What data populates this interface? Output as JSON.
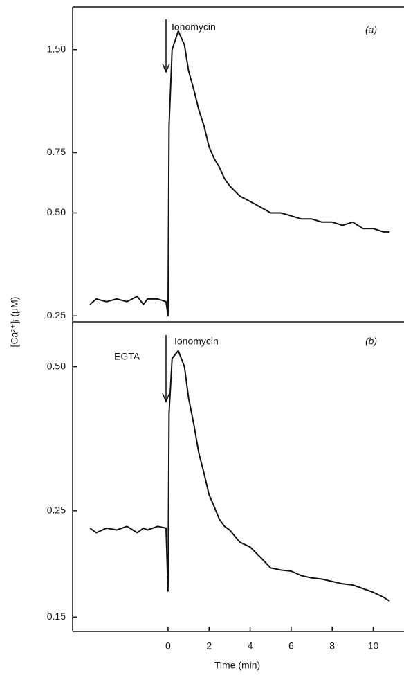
{
  "chart_data": [
    {
      "type": "line",
      "panel_label": "(a)",
      "annotations": [
        "Ionomycin"
      ],
      "ylabel": "[Ca²⁺]ᵢ (μM)",
      "log_y": true,
      "xlim": [
        -4.65,
        11.5
      ],
      "ylim": [
        0.24,
        2.0
      ],
      "yticks": [
        0.25,
        {
          "value": 0.5,
          "label": "0.50"
        },
        0.75,
        {
          "value": 1.5,
          "label": "1.50"
        }
      ],
      "x": [
        -3.8,
        -3.5,
        -3,
        -2.5,
        -2,
        -1.5,
        -1.2,
        -1,
        -0.5,
        -0.1,
        0,
        0.05,
        0.2,
        0.5,
        0.8,
        1,
        1.25,
        1.5,
        1.75,
        2,
        2.25,
        2.5,
        2.75,
        3,
        3.5,
        4,
        4.5,
        5,
        5.5,
        6,
        6.5,
        7,
        7.5,
        8,
        8.5,
        9,
        9.5,
        10,
        10.5,
        10.8
      ],
      "series": [
        {
          "color": "#111111",
          "values": [
            0.27,
            0.28,
            0.275,
            0.28,
            0.275,
            0.285,
            0.27,
            0.28,
            0.28,
            0.275,
            0.25,
            0.9,
            1.5,
            1.7,
            1.55,
            1.3,
            1.15,
            1.0,
            0.9,
            0.78,
            0.72,
            0.68,
            0.63,
            0.6,
            0.56,
            0.54,
            0.52,
            0.5,
            0.5,
            0.49,
            0.48,
            0.48,
            0.47,
            0.47,
            0.46,
            0.47,
            0.45,
            0.45,
            0.44,
            0.44
          ]
        }
      ]
    },
    {
      "type": "line",
      "panel_label": "(b)",
      "annotations": [
        "Ionomycin",
        "EGTA"
      ],
      "xlabel": "Time (min)",
      "log_y": true,
      "xlim": [
        -4.65,
        11.5
      ],
      "xticks": [
        0,
        2,
        4,
        6,
        8,
        10
      ],
      "ylim": [
        0.14,
        0.62
      ],
      "yticks": [
        0.15,
        0.25,
        {
          "value": 0.5,
          "label": "0.50"
        }
      ],
      "x": [
        -3.8,
        -3.5,
        -3,
        -2.5,
        -2,
        -1.5,
        -1.2,
        -1,
        -0.5,
        -0.1,
        0,
        0.05,
        0.2,
        0.5,
        0.8,
        1,
        1.25,
        1.5,
        1.75,
        2,
        2.25,
        2.5,
        2.75,
        3,
        3.5,
        4,
        4.5,
        5,
        5.5,
        6,
        6.5,
        7,
        7.5,
        8,
        8.5,
        9,
        9.5,
        10,
        10.5,
        10.8
      ],
      "series": [
        {
          "color": "#111111",
          "values": [
            0.23,
            0.225,
            0.23,
            0.228,
            0.232,
            0.225,
            0.23,
            0.228,
            0.232,
            0.23,
            0.17,
            0.4,
            0.52,
            0.54,
            0.5,
            0.43,
            0.38,
            0.33,
            0.3,
            0.27,
            0.255,
            0.24,
            0.232,
            0.228,
            0.215,
            0.21,
            0.2,
            0.19,
            0.188,
            0.187,
            0.183,
            0.181,
            0.18,
            0.178,
            0.176,
            0.175,
            0.172,
            0.169,
            0.165,
            0.162
          ]
        }
      ]
    }
  ]
}
